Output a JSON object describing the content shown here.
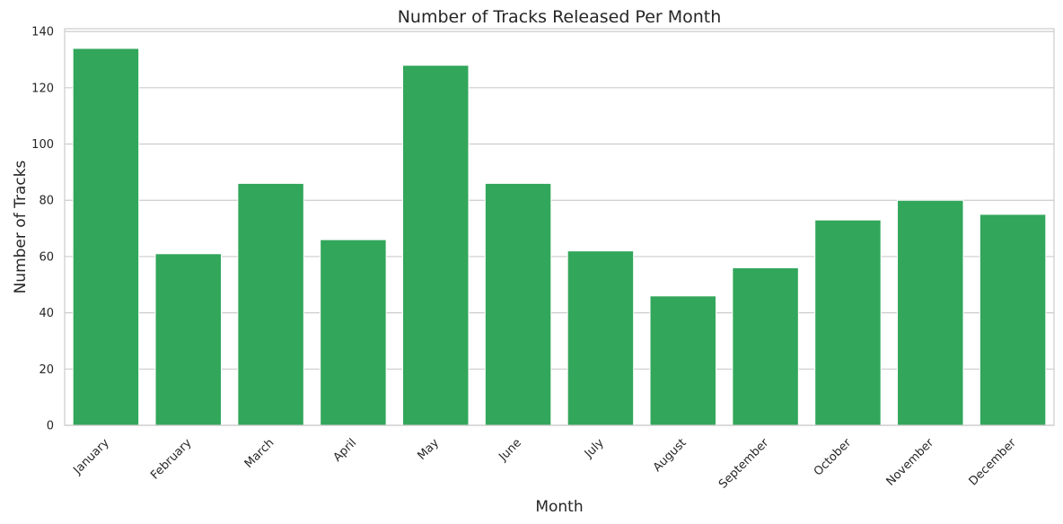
{
  "chart_data": {
    "type": "bar",
    "title": "Number of Tracks Released Per Month",
    "xlabel": "Month",
    "ylabel": "Number of Tracks",
    "categories": [
      "January",
      "February",
      "March",
      "April",
      "May",
      "June",
      "July",
      "August",
      "September",
      "October",
      "November",
      "December"
    ],
    "values": [
      134,
      61,
      86,
      66,
      128,
      86,
      62,
      46,
      56,
      73,
      80,
      75
    ],
    "ylim": [
      0,
      141
    ],
    "yticks": [
      0,
      20,
      40,
      60,
      80,
      100,
      120,
      140
    ],
    "grid": true,
    "bar_color": "#32a65b",
    "xtick_rotation": 45
  }
}
